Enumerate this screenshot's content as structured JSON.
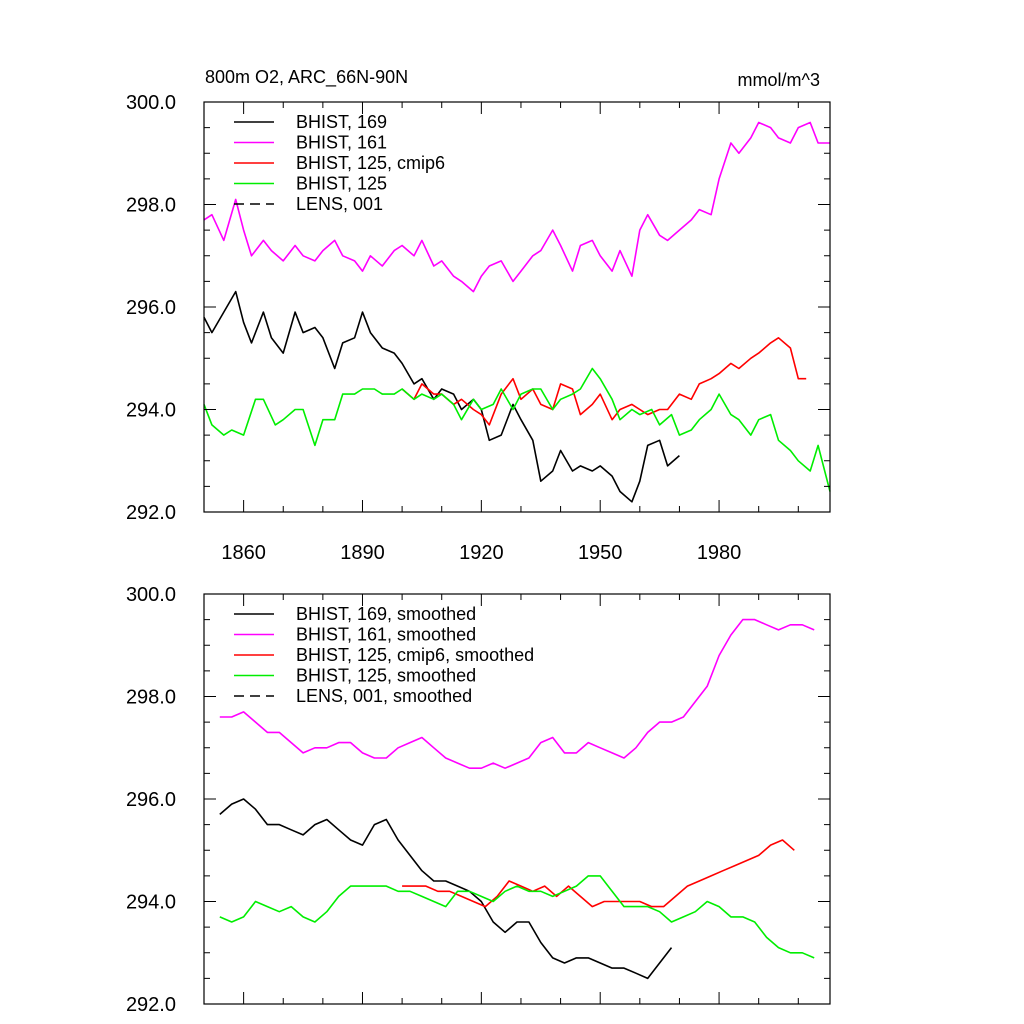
{
  "figure": {
    "title": "800m O2, ARC_66N-90N",
    "units": "mmol/m^3"
  },
  "chart_data": [
    {
      "type": "line",
      "xlim": [
        1850,
        2008
      ],
      "ylim": [
        292,
        300
      ],
      "x_ticks": [
        1860,
        1890,
        1920,
        1950,
        1980
      ],
      "x_tick_labels": [
        "1860",
        "1890",
        "1920",
        "1950",
        "1980"
      ],
      "y_ticks": [
        292,
        294,
        296,
        298,
        300
      ],
      "y_tick_labels": [
        "292.0",
        "294.0",
        "296.0",
        "298.0",
        "300.0"
      ],
      "grid": false,
      "legend_position": "top-left",
      "series": [
        {
          "name": "BHIST, 169",
          "color": "#000000",
          "dash": "solid",
          "x": [
            1850,
            1852,
            1855,
            1858,
            1860,
            1862,
            1865,
            1867,
            1870,
            1873,
            1875,
            1878,
            1880,
            1883,
            1885,
            1888,
            1890,
            1892,
            1895,
            1898,
            1900,
            1903,
            1905,
            1908,
            1910,
            1913,
            1915,
            1918,
            1920,
            1922,
            1925,
            1928,
            1930,
            1933,
            1935,
            1938,
            1940,
            1943,
            1945,
            1948,
            1950,
            1953,
            1955,
            1958,
            1960,
            1962,
            1965,
            1967,
            1970
          ],
          "y": [
            295.8,
            295.5,
            295.9,
            296.3,
            295.7,
            295.3,
            295.9,
            295.4,
            295.1,
            295.9,
            295.5,
            295.6,
            295.4,
            294.8,
            295.3,
            295.4,
            295.9,
            295.5,
            295.2,
            295.1,
            294.9,
            294.5,
            294.6,
            294.2,
            294.4,
            294.3,
            294.0,
            294.2,
            294.0,
            293.4,
            293.5,
            294.1,
            293.8,
            293.4,
            292.6,
            292.8,
            293.2,
            292.8,
            292.9,
            292.8,
            292.9,
            292.7,
            292.4,
            292.2,
            292.6,
            293.3,
            293.4,
            292.9,
            293.1
          ]
        },
        {
          "name": "BHIST, 161",
          "color": "#ff00ff",
          "dash": "solid",
          "x": [
            1850,
            1852,
            1855,
            1858,
            1860,
            1862,
            1865,
            1867,
            1870,
            1873,
            1875,
            1878,
            1880,
            1883,
            1885,
            1888,
            1890,
            1892,
            1895,
            1898,
            1900,
            1903,
            1905,
            1908,
            1910,
            1913,
            1915,
            1918,
            1920,
            1922,
            1925,
            1928,
            1930,
            1933,
            1935,
            1938,
            1940,
            1943,
            1945,
            1948,
            1950,
            1953,
            1955,
            1958,
            1960,
            1962,
            1965,
            1967,
            1970,
            1973,
            1975,
            1978,
            1980,
            1983,
            1985,
            1988,
            1990,
            1993,
            1995,
            1998,
            2000,
            2003,
            2005,
            2008
          ],
          "y": [
            297.7,
            297.8,
            297.3,
            298.1,
            297.5,
            297.0,
            297.3,
            297.1,
            296.9,
            297.2,
            297.0,
            296.9,
            297.1,
            297.3,
            297.0,
            296.9,
            296.7,
            297.0,
            296.8,
            297.1,
            297.2,
            297.0,
            297.3,
            296.8,
            296.9,
            296.6,
            296.5,
            296.3,
            296.6,
            296.8,
            296.9,
            296.5,
            296.7,
            297.0,
            297.1,
            297.5,
            297.2,
            296.7,
            297.2,
            297.3,
            297.0,
            296.7,
            297.1,
            296.6,
            297.5,
            297.8,
            297.4,
            297.3,
            297.5,
            297.7,
            297.9,
            297.8,
            298.5,
            299.2,
            299.0,
            299.3,
            299.6,
            299.5,
            299.3,
            299.2,
            299.5,
            299.6,
            299.2,
            299.2
          ]
        },
        {
          "name": "BHIST, 125, cmip6",
          "color": "#ff0000",
          "dash": "solid",
          "x": [
            1900,
            1903,
            1905,
            1908,
            1910,
            1913,
            1915,
            1918,
            1920,
            1922,
            1925,
            1928,
            1930,
            1933,
            1935,
            1938,
            1940,
            1943,
            1945,
            1948,
            1950,
            1953,
            1955,
            1958,
            1960,
            1962,
            1965,
            1967,
            1970,
            1973,
            1975,
            1978,
            1980,
            1983,
            1985,
            1988,
            1990,
            1993,
            1995,
            1998,
            2000,
            2002
          ],
          "y": [
            294.4,
            294.2,
            294.5,
            294.3,
            294.3,
            294.1,
            294.2,
            294.0,
            293.9,
            293.7,
            294.3,
            294.6,
            294.2,
            294.4,
            294.1,
            294.0,
            294.5,
            294.4,
            293.9,
            294.1,
            294.3,
            293.8,
            294.0,
            294.1,
            294.0,
            293.9,
            294.0,
            294.0,
            294.3,
            294.2,
            294.5,
            294.6,
            294.7,
            294.9,
            294.8,
            295.0,
            295.1,
            295.3,
            295.4,
            295.2,
            294.6,
            294.6
          ]
        },
        {
          "name": "BHIST, 125",
          "color": "#00ee00",
          "dash": "solid",
          "x": [
            1850,
            1852,
            1855,
            1857,
            1860,
            1863,
            1865,
            1868,
            1870,
            1873,
            1875,
            1878,
            1880,
            1883,
            1885,
            1888,
            1890,
            1893,
            1895,
            1898,
            1900,
            1903,
            1905,
            1908,
            1910,
            1913,
            1915,
            1918,
            1920,
            1923,
            1925,
            1928,
            1930,
            1933,
            1935,
            1938,
            1940,
            1943,
            1945,
            1948,
            1950,
            1953,
            1955,
            1958,
            1960,
            1963,
            1965,
            1968,
            1970,
            1973,
            1975,
            1978,
            1980,
            1983,
            1985,
            1988,
            1990,
            1993,
            1995,
            1998,
            2000,
            2003,
            2005,
            2008
          ],
          "y": [
            294.1,
            293.7,
            293.5,
            293.6,
            293.5,
            294.2,
            294.2,
            293.7,
            293.8,
            294.0,
            294.0,
            293.3,
            293.8,
            293.8,
            294.3,
            294.3,
            294.4,
            294.4,
            294.3,
            294.3,
            294.4,
            294.2,
            294.3,
            294.2,
            294.3,
            294.1,
            293.8,
            294.2,
            294.0,
            294.1,
            294.4,
            294.0,
            294.3,
            294.4,
            294.4,
            294.0,
            294.2,
            294.3,
            294.4,
            294.8,
            294.6,
            294.2,
            293.8,
            294.0,
            293.9,
            294.0,
            293.7,
            293.9,
            293.5,
            293.6,
            293.8,
            294.0,
            294.3,
            293.9,
            293.8,
            293.5,
            293.8,
            293.9,
            293.4,
            293.2,
            293.0,
            292.8,
            293.3,
            292.4
          ]
        }
      ]
    },
    {
      "type": "line",
      "xlim": [
        1850,
        2008
      ],
      "ylim": [
        292,
        300
      ],
      "x_ticks": [
        1860,
        1890,
        1920,
        1950,
        1980
      ],
      "y_ticks": [
        292,
        294,
        296,
        298,
        300
      ],
      "y_tick_labels": [
        "292.0",
        "294.0",
        "296.0",
        "298.0",
        "300.0"
      ],
      "grid": false,
      "legend_position": "top-left",
      "series": [
        {
          "name": "BHIST, 169, smoothed",
          "color": "#000000",
          "dash": "solid",
          "x": [
            1854,
            1857,
            1860,
            1863,
            1866,
            1869,
            1872,
            1875,
            1878,
            1881,
            1884,
            1887,
            1890,
            1893,
            1896,
            1899,
            1902,
            1905,
            1908,
            1911,
            1914,
            1917,
            1920,
            1923,
            1926,
            1929,
            1932,
            1935,
            1938,
            1941,
            1944,
            1947,
            1950,
            1953,
            1956,
            1959,
            1962,
            1965,
            1968
          ],
          "y": [
            295.7,
            295.9,
            296.0,
            295.8,
            295.5,
            295.5,
            295.4,
            295.3,
            295.5,
            295.6,
            295.4,
            295.2,
            295.1,
            295.5,
            295.6,
            295.2,
            294.9,
            294.6,
            294.4,
            294.4,
            294.3,
            294.2,
            294.0,
            293.6,
            293.4,
            293.6,
            293.6,
            293.2,
            292.9,
            292.8,
            292.9,
            292.9,
            292.8,
            292.7,
            292.7,
            292.6,
            292.5,
            292.8,
            293.1
          ]
        },
        {
          "name": "BHIST, 161, smoothed",
          "color": "#ff00ff",
          "dash": "solid",
          "x": [
            1854,
            1857,
            1860,
            1863,
            1866,
            1869,
            1872,
            1875,
            1878,
            1881,
            1884,
            1887,
            1890,
            1893,
            1896,
            1899,
            1902,
            1905,
            1908,
            1911,
            1914,
            1917,
            1920,
            1923,
            1926,
            1929,
            1932,
            1935,
            1938,
            1941,
            1944,
            1947,
            1950,
            1953,
            1956,
            1959,
            1962,
            1965,
            1968,
            1971,
            1974,
            1977,
            1980,
            1983,
            1986,
            1989,
            1992,
            1995,
            1998,
            2001,
            2004
          ],
          "y": [
            297.6,
            297.6,
            297.7,
            297.5,
            297.3,
            297.3,
            297.1,
            296.9,
            297.0,
            297.0,
            297.1,
            297.1,
            296.9,
            296.8,
            296.8,
            297.0,
            297.1,
            297.2,
            297.0,
            296.8,
            296.7,
            296.6,
            296.6,
            296.7,
            296.6,
            296.7,
            296.8,
            297.1,
            297.2,
            296.9,
            296.9,
            297.1,
            297.0,
            296.9,
            296.8,
            297.0,
            297.3,
            297.5,
            297.5,
            297.6,
            297.9,
            298.2,
            298.8,
            299.2,
            299.5,
            299.5,
            299.4,
            299.3,
            299.4,
            299.4,
            299.3
          ]
        },
        {
          "name": "BHIST, 125, cmip6, smoothed",
          "color": "#ff0000",
          "dash": "solid",
          "x": [
            1900,
            1903,
            1906,
            1909,
            1912,
            1915,
            1918,
            1921,
            1924,
            1927,
            1930,
            1933,
            1936,
            1939,
            1942,
            1945,
            1948,
            1951,
            1954,
            1957,
            1960,
            1963,
            1966,
            1969,
            1972,
            1975,
            1978,
            1981,
            1984,
            1987,
            1990,
            1993,
            1996,
            1999
          ],
          "y": [
            294.3,
            294.3,
            294.3,
            294.2,
            294.2,
            294.1,
            294.0,
            293.9,
            294.1,
            294.4,
            294.3,
            294.2,
            294.3,
            294.1,
            294.3,
            294.1,
            293.9,
            294.0,
            294.0,
            294.0,
            294.0,
            293.9,
            293.9,
            294.1,
            294.3,
            294.4,
            294.5,
            294.6,
            294.7,
            294.8,
            294.9,
            295.1,
            295.2,
            295.0
          ]
        },
        {
          "name": "BHIST, 125, smoothed",
          "color": "#00ee00",
          "dash": "solid",
          "x": [
            1854,
            1857,
            1860,
            1863,
            1866,
            1869,
            1872,
            1875,
            1878,
            1881,
            1884,
            1887,
            1890,
            1893,
            1896,
            1899,
            1902,
            1905,
            1908,
            1911,
            1914,
            1917,
            1920,
            1923,
            1926,
            1929,
            1932,
            1935,
            1938,
            1941,
            1944,
            1947,
            1950,
            1953,
            1956,
            1959,
            1962,
            1965,
            1968,
            1971,
            1974,
            1977,
            1980,
            1983,
            1986,
            1989,
            1992,
            1995,
            1998,
            2001,
            2004
          ],
          "y": [
            293.7,
            293.6,
            293.7,
            294.0,
            293.9,
            293.8,
            293.9,
            293.7,
            293.6,
            293.8,
            294.1,
            294.3,
            294.3,
            294.3,
            294.3,
            294.2,
            294.2,
            294.1,
            294.0,
            293.9,
            294.2,
            294.2,
            294.1,
            294.0,
            294.2,
            294.3,
            294.2,
            294.2,
            294.1,
            294.2,
            294.3,
            294.5,
            294.5,
            294.2,
            293.9,
            293.9,
            293.9,
            293.8,
            293.6,
            293.7,
            293.8,
            294.0,
            293.9,
            293.7,
            293.7,
            293.6,
            293.3,
            293.1,
            293.0,
            293.0,
            292.9
          ]
        }
      ]
    }
  ],
  "legends": [
    {
      "entries": [
        {
          "label": "BHIST, 169",
          "color": "#000000",
          "dash": "solid"
        },
        {
          "label": "BHIST, 161",
          "color": "#ff00ff",
          "dash": "solid"
        },
        {
          "label": "BHIST, 125, cmip6",
          "color": "#ff0000",
          "dash": "solid"
        },
        {
          "label": "BHIST, 125",
          "color": "#00ee00",
          "dash": "solid"
        },
        {
          "label": "LENS, 001",
          "color": "#000000",
          "dash": "dashed"
        }
      ]
    },
    {
      "entries": [
        {
          "label": "BHIST, 169, smoothed",
          "color": "#000000",
          "dash": "solid"
        },
        {
          "label": "BHIST, 161, smoothed",
          "color": "#ff00ff",
          "dash": "solid"
        },
        {
          "label": "BHIST, 125, cmip6, smoothed",
          "color": "#ff0000",
          "dash": "solid"
        },
        {
          "label": "BHIST, 125, smoothed",
          "color": "#00ee00",
          "dash": "solid"
        },
        {
          "label": "LENS, 001, smoothed",
          "color": "#000000",
          "dash": "dashed"
        }
      ]
    }
  ]
}
